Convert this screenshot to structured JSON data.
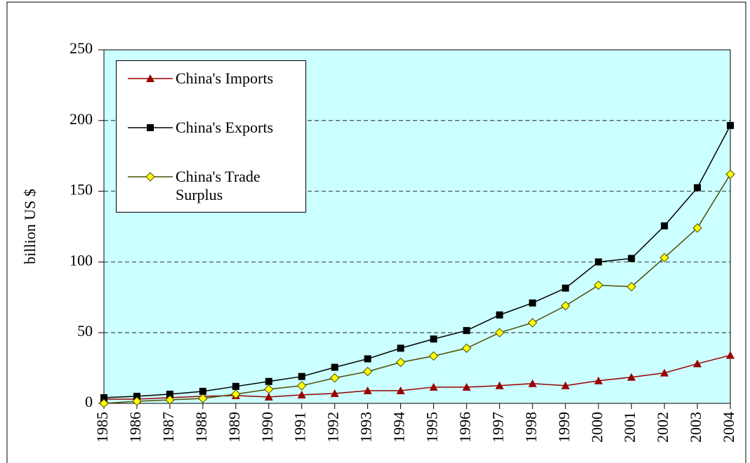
{
  "chart_data": {
    "type": "line",
    "y_label": "billion US $",
    "categories": [
      "1985",
      "1986",
      "1987",
      "1988",
      "1989",
      "1990",
      "1991",
      "1992",
      "1993",
      "1994",
      "1995",
      "1996",
      "1997",
      "1998",
      "1999",
      "2000",
      "2001",
      "2002",
      "2003",
      "2004"
    ],
    "series": [
      {
        "name": "China's Imports",
        "color": "#990000",
        "marker": "triangle",
        "values": [
          3,
          3,
          4,
          5,
          5.5,
          4.5,
          6,
          7,
          9,
          9,
          11.5,
          11.5,
          12.5,
          14,
          12.5,
          16,
          18.5,
          21.5,
          28,
          34
        ]
      },
      {
        "name": "China's Exports",
        "color": "#000000",
        "marker": "square",
        "values": [
          4,
          5,
          6.5,
          8.5,
          12,
          15.5,
          19,
          25.5,
          31.5,
          39,
          45.5,
          51.5,
          62.5,
          71,
          81.5,
          100,
          102.5,
          125.5,
          152.5,
          196.5
        ]
      },
      {
        "name": "China's Trade Surplus",
        "color": "#4d4d00",
        "marker_fill": "#ffff00",
        "marker": "diamond",
        "values": [
          0,
          1.5,
          2.5,
          3.5,
          6.5,
          10,
          12.5,
          18,
          22.5,
          29,
          33.5,
          39,
          50,
          57,
          69,
          83.5,
          82.5,
          103,
          124,
          162
        ]
      }
    ],
    "ylim": [
      0,
      250
    ],
    "yticks": [
      0,
      50,
      100,
      150,
      200,
      250
    ],
    "grid": true,
    "legend": "upper left"
  }
}
